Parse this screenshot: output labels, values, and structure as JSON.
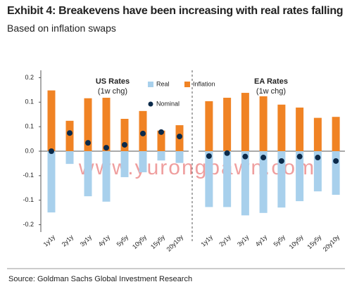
{
  "title": "Exhibit 4: Breakevens have been increasing with real rates falling",
  "subtitle": "Based on inflation swaps",
  "source": "Source: Goldman Sachs Global Investment Research",
  "watermark": "www.yurongpawn.com",
  "chart_data": [
    {
      "type": "bar",
      "title": "US Rates",
      "subtitle": "(1w chg)",
      "categories": [
        "1y1y",
        "2y1y",
        "3y1y",
        "4y1y",
        "5y5y",
        "10y5y",
        "15y5y",
        "20y10y"
      ],
      "ylim": [
        -0.165,
        0.165
      ],
      "yticks": [
        {
          "value": 0.15,
          "label": "0.2"
        },
        0.1,
        {
          "value": 0.05,
          "label": "0.1"
        },
        {
          "value": 0,
          "label": "0.0"
        },
        {
          "value": -0.05,
          "label": "-0.1"
        },
        -0.1,
        {
          "value": -0.15,
          "label": "-0.2"
        }
      ],
      "series": [
        {
          "name": "Real",
          "kind": "bar",
          "color": "#a8d0ec",
          "values": [
            -0.125,
            -0.026,
            -0.092,
            -0.103,
            -0.053,
            -0.043,
            -0.019,
            -0.024
          ]
        },
        {
          "name": "Inflation",
          "kind": "bar",
          "color": "#f08324",
          "values": [
            0.124,
            0.062,
            0.108,
            0.109,
            0.066,
            0.082,
            0.042,
            0.053
          ]
        },
        {
          "name": "Nominal",
          "kind": "dot",
          "color": "#0b2a4a",
          "values": [
            0.0,
            0.037,
            0.017,
            0.007,
            0.013,
            0.036,
            0.039,
            0.03
          ]
        }
      ]
    },
    {
      "type": "bar",
      "title": "EA Rates",
      "subtitle": "(1w chg)",
      "categories": [
        "1y1y",
        "2y1y",
        "3y1y",
        "4y1y",
        "5y5y",
        "10y5y",
        "15y5y",
        "20y10y"
      ],
      "ylim": [
        -0.165,
        0.165
      ],
      "series": [
        {
          "name": "Real",
          "kind": "bar",
          "color": "#a8d0ec",
          "values": [
            -0.114,
            -0.114,
            -0.131,
            -0.126,
            -0.115,
            -0.102,
            -0.082,
            -0.089
          ]
        },
        {
          "name": "Inflation",
          "kind": "bar",
          "color": "#f08324",
          "values": [
            0.102,
            0.109,
            0.119,
            0.112,
            0.095,
            0.089,
            0.068,
            0.07
          ]
        },
        {
          "name": "Nominal",
          "kind": "dot",
          "color": "#0b2a4a",
          "values": [
            -0.01,
            -0.004,
            -0.011,
            -0.013,
            -0.02,
            -0.011,
            -0.013,
            -0.02
          ]
        }
      ]
    }
  ]
}
